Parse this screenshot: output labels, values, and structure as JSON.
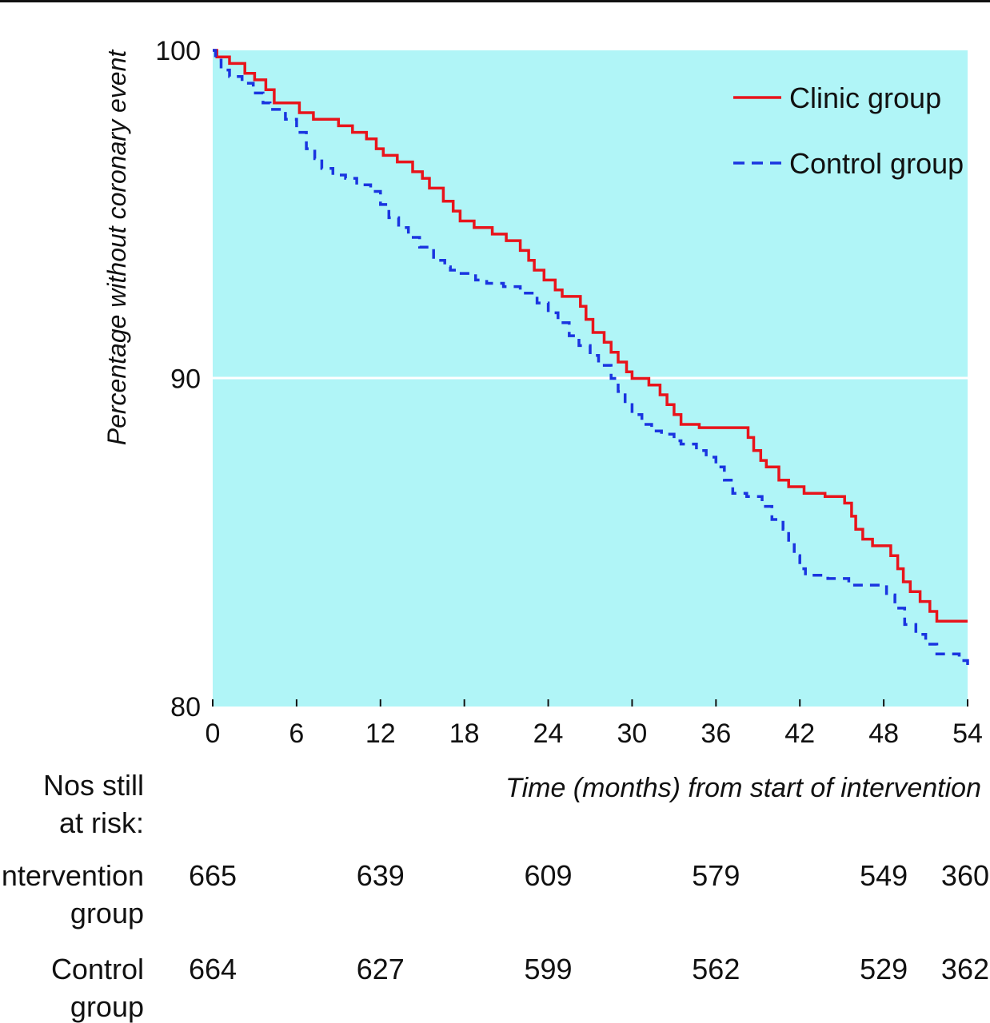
{
  "chart_data": {
    "type": "line",
    "chart_style": "step (Kaplan-Meier survival curves)",
    "ylabel": "Percentage without coronary event",
    "xlabel": "Time (months) from start of intervention",
    "xlim": [
      0,
      54
    ],
    "ylim": [
      80,
      100
    ],
    "x_ticks": [
      "0",
      "6",
      "12",
      "18",
      "24",
      "30",
      "36",
      "42",
      "48",
      "54"
    ],
    "y_ticks": [
      "80",
      "90",
      "100"
    ],
    "gridline_y": 90,
    "legend_position": "top-right",
    "series": [
      {
        "name": "Clinic group",
        "color": "#e8141b",
        "style": "solid",
        "x": [
          0,
          0.3,
          1.2,
          2.3,
          3.0,
          3.8,
          4.4,
          6.2,
          7.2,
          9.0,
          10.0,
          11.0,
          11.7,
          12.2,
          13.2,
          14.3,
          15.0,
          15.5,
          16.5,
          17.2,
          17.7,
          18.7,
          20.0,
          21.0,
          22.0,
          22.6,
          23.0,
          23.7,
          24.5,
          25.0,
          26.3,
          26.7,
          27.2,
          28.0,
          28.5,
          29.0,
          29.6,
          30.0,
          31.2,
          32.0,
          32.5,
          33.0,
          33.5,
          34.8,
          38.3,
          38.7,
          39.2,
          39.6,
          40.5,
          41.2,
          42.3,
          43.8,
          45.2,
          45.7,
          46.0,
          46.5,
          47.2,
          48.5,
          49.0,
          49.4,
          49.9,
          50.6,
          51.3,
          51.8,
          54.0
        ],
        "y": [
          100,
          99.8,
          99.6,
          99.3,
          99.1,
          98.8,
          98.4,
          98.1,
          97.9,
          97.7,
          97.5,
          97.3,
          97.0,
          96.8,
          96.6,
          96.3,
          96.1,
          95.8,
          95.4,
          95.1,
          94.8,
          94.6,
          94.4,
          94.2,
          93.9,
          93.6,
          93.3,
          93.0,
          92.7,
          92.5,
          92.2,
          91.8,
          91.4,
          91.1,
          90.8,
          90.5,
          90.2,
          90.0,
          89.8,
          89.5,
          89.2,
          88.9,
          88.6,
          88.5,
          88.2,
          87.8,
          87.5,
          87.3,
          86.9,
          86.7,
          86.5,
          86.4,
          86.2,
          85.8,
          85.4,
          85.1,
          84.9,
          84.6,
          84.2,
          83.8,
          83.5,
          83.2,
          82.9,
          82.6,
          82.6
        ]
      },
      {
        "name": "Control group",
        "color": "#1a35e0",
        "style": "dashed",
        "x": [
          0,
          0.2,
          0.6,
          1.2,
          2.1,
          2.9,
          3.6,
          4.1,
          5.2,
          6.0,
          6.7,
          7.3,
          7.8,
          8.6,
          9.5,
          10.3,
          11.3,
          12.0,
          12.6,
          13.3,
          14.0,
          14.8,
          15.8,
          16.6,
          17.0,
          17.6,
          18.8,
          19.6,
          20.8,
          22.0,
          23.2,
          24.0,
          24.7,
          25.5,
          26.2,
          27.0,
          27.6,
          28.5,
          29.0,
          29.5,
          30.0,
          30.7,
          31.4,
          32.1,
          33.0,
          33.5,
          34.6,
          35.3,
          36.0,
          36.6,
          37.2,
          38.2,
          39.3,
          40.0,
          40.8,
          41.2,
          41.6,
          42.0,
          42.4,
          44.0,
          45.5,
          47.5,
          48.2,
          48.8,
          49.5,
          50.3,
          51.0,
          51.8,
          53.4,
          54.0
        ],
        "y": [
          100,
          99.7,
          99.4,
          99.2,
          99.0,
          98.7,
          98.4,
          98.2,
          97.9,
          97.5,
          97.0,
          96.7,
          96.4,
          96.2,
          96.1,
          95.9,
          95.7,
          95.3,
          94.9,
          94.6,
          94.3,
          94.0,
          93.6,
          93.4,
          93.3,
          93.2,
          93.0,
          92.9,
          92.8,
          92.6,
          92.3,
          92.0,
          91.7,
          91.3,
          91.0,
          90.7,
          90.4,
          90.0,
          89.6,
          89.2,
          88.9,
          88.6,
          88.4,
          88.3,
          88.1,
          88.0,
          87.8,
          87.6,
          87.3,
          86.9,
          86.5,
          86.4,
          86.1,
          85.7,
          85.4,
          85.0,
          84.6,
          84.2,
          84.0,
          83.9,
          83.7,
          83.7,
          83.4,
          83.0,
          82.5,
          82.2,
          81.9,
          81.6,
          81.4,
          81.1
        ]
      }
    ],
    "risk_table": {
      "heading_line1": "Nos still",
      "heading_line2": "at risk:",
      "times": [
        0,
        12,
        24,
        36,
        48,
        54
      ],
      "rows": [
        {
          "label_line1": "Intervention",
          "label_line2": "group",
          "values": [
            "665",
            "639",
            "609",
            "579",
            "549",
            "360"
          ]
        },
        {
          "label_line1": "Control",
          "label_line2": "group",
          "values": [
            "664",
            "627",
            "599",
            "562",
            "529",
            "362"
          ]
        }
      ]
    }
  }
}
